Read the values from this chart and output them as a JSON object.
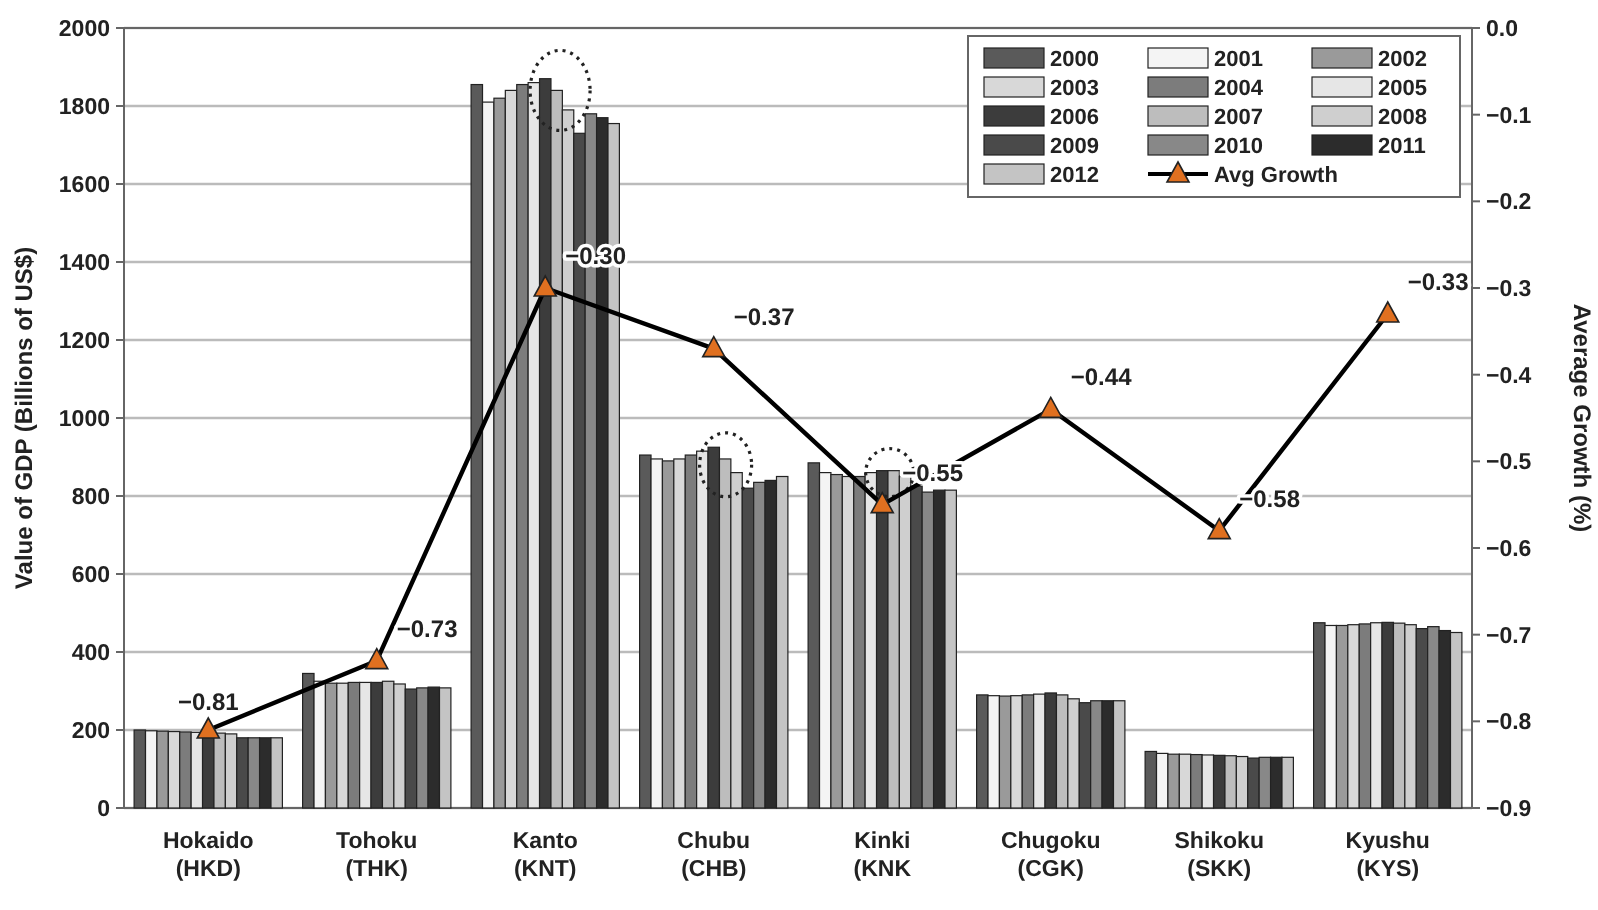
{
  "chart_data": {
    "type": "bar",
    "ylabel": "Value of GDP (Billions of US$)",
    "y2label": "Average Growth (%)",
    "categories": [
      "Hokaido\n(HKD)",
      "Tohoku\n(THK)",
      "Kanto\n(KNT)",
      "Chubu\n(CHB)",
      "Kinki\n(KNK",
      "Chugoku\n(CGK)",
      "Shikoku\n(SKK)",
      "Kyushu\n(KYS)"
    ],
    "series": [
      {
        "name": "2000",
        "color": "#5a5a5a",
        "values": [
          200,
          345,
          1855,
          905,
          885,
          290,
          145,
          475
        ]
      },
      {
        "name": "2001",
        "color": "#f4f4f4",
        "values": [
          198,
          325,
          1810,
          895,
          860,
          288,
          140,
          468
        ]
      },
      {
        "name": "2002",
        "color": "#9a9a9a",
        "values": [
          197,
          320,
          1820,
          890,
          855,
          287,
          138,
          468
        ]
      },
      {
        "name": "2003",
        "color": "#d8d8d8",
        "values": [
          196,
          320,
          1840,
          895,
          850,
          288,
          138,
          470
        ]
      },
      {
        "name": "2004",
        "color": "#7c7c7c",
        "values": [
          195,
          322,
          1855,
          905,
          850,
          290,
          137,
          472
        ]
      },
      {
        "name": "2005",
        "color": "#e6e6e6",
        "values": [
          194,
          322,
          1860,
          915,
          860,
          292,
          136,
          475
        ]
      },
      {
        "name": "2006",
        "color": "#3c3c3c",
        "values": [
          193,
          322,
          1870,
          925,
          865,
          295,
          135,
          476
        ]
      },
      {
        "name": "2007",
        "color": "#bdbdbd",
        "values": [
          192,
          325,
          1840,
          895,
          865,
          290,
          134,
          474
        ]
      },
      {
        "name": "2008",
        "color": "#cfcfcf",
        "values": [
          190,
          318,
          1790,
          860,
          850,
          280,
          132,
          470
        ]
      },
      {
        "name": "2009",
        "color": "#4a4a4a",
        "values": [
          180,
          305,
          1730,
          820,
          825,
          270,
          128,
          460
        ]
      },
      {
        "name": "2010",
        "color": "#888888",
        "values": [
          180,
          308,
          1780,
          835,
          810,
          275,
          130,
          465
        ]
      },
      {
        "name": "2011",
        "color": "#2c2c2c",
        "values": [
          180,
          310,
          1770,
          840,
          815,
          275,
          130,
          455
        ]
      },
      {
        "name": "2012",
        "color": "#c4c4c4",
        "values": [
          180,
          308,
          1755,
          850,
          815,
          275,
          130,
          450
        ]
      },
      {
        "name": "Avg Growth",
        "type": "line",
        "axis": "y2",
        "color": "#e07020",
        "marker": "triangle",
        "value_labels": [
          "−0.81",
          "−0.73",
          "−0.30",
          "−0.37",
          "−0.55",
          "−0.44",
          "−0.58",
          "−0.33"
        ],
        "values": [
          -0.81,
          -0.73,
          -0.3,
          -0.37,
          -0.55,
          -0.44,
          -0.58,
          -0.33
        ]
      }
    ],
    "ylim": [
      0,
      2000
    ],
    "yticks": [
      0,
      200,
      400,
      600,
      800,
      1000,
      1200,
      1400,
      1600,
      1800,
      2000
    ],
    "y2lim": [
      -0.9,
      0
    ],
    "y2ticks": [
      {
        "value": -0.9,
        "label": "−0.9"
      },
      {
        "value": -0.8,
        "label": "−0.8"
      },
      {
        "value": -0.7,
        "label": "−0.7"
      },
      {
        "value": -0.6,
        "label": "−0.6"
      },
      {
        "value": -0.5,
        "label": "−0.5"
      },
      {
        "value": -0.4,
        "label": "−0.4"
      },
      {
        "value": -0.3,
        "label": "−0.3"
      },
      {
        "value": -0.2,
        "label": "−0.2"
      },
      {
        "value": -0.1,
        "label": "−0.1"
      },
      {
        "value": 0,
        "label": "0.0"
      }
    ],
    "grid": "y",
    "legend": "top right"
  }
}
